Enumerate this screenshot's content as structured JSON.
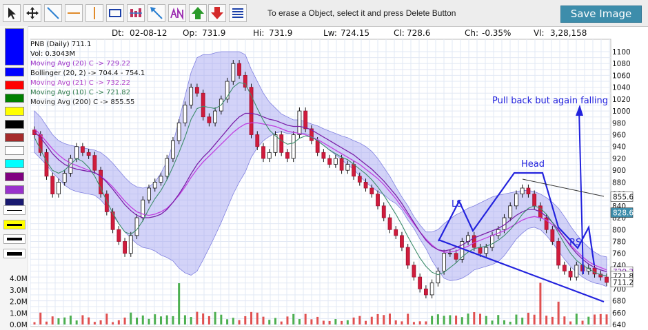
{
  "toolbar": {
    "tools": [
      {
        "name": "pointer-icon",
        "color": "#222222"
      },
      {
        "name": "move-icon",
        "color": "#222222"
      },
      {
        "name": "trendline-icon",
        "color": "#2a7fd0"
      },
      {
        "name": "horizontal-line-icon",
        "color": "#e08a2a"
      },
      {
        "name": "vertical-line-icon",
        "color": "#e08a2a"
      },
      {
        "name": "rectangle-icon",
        "color": "#1a3fa8"
      },
      {
        "name": "fibonacci-icon",
        "color": "#c0305a"
      },
      {
        "name": "arrow-line-icon",
        "color": "#2a7fd0"
      },
      {
        "name": "text-annotation-icon",
        "color": "#9a2ab0"
      },
      {
        "name": "up-arrow-icon",
        "color": "#2a9a2a"
      },
      {
        "name": "down-arrow-icon",
        "color": "#d42a2a"
      },
      {
        "name": "menu-icon",
        "color": "#1a3fa8"
      }
    ],
    "hint": "To erase a Object, select it and press Delete Button",
    "save_label": "Save Image",
    "save_color": "#3d8dab"
  },
  "palette": {
    "swatches": [
      "#0000ff",
      "#ff0000",
      "#008000",
      "#ffff00",
      "#000000",
      "#a52a2a",
      "#ffffff",
      "#00ffff",
      "#800080",
      "#9932cc",
      "#191970"
    ],
    "selected": "#0000ff",
    "lines": [
      "thin",
      "thick",
      "medium",
      "thickest"
    ]
  },
  "info": {
    "dt_label": "Dt:",
    "dt": "02-08-12",
    "op_label": "Op:",
    "op": "731.9",
    "hi_label": "Hi:",
    "hi": "731.9",
    "lw_label": "Lw:",
    "lw": "724.15",
    "cl_label": "Cl:",
    "cl": "728.6",
    "ch_label": "Ch:",
    "ch": "-0.35%",
    "vl_label": "Vl:",
    "vl": "3,28,158"
  },
  "legend": {
    "title": "PNB (Daily) 711.1",
    "vol": "Vol: 0.3043M",
    "ma20": "Moving Avg (20) C -> 729.22",
    "boll": "Bollinger (20, 2) -> 704.4 - 754.1",
    "ma21": "Moving Avg (21) C -> 732.22",
    "ma10": "Moving Avg (10) C -> 721.82",
    "ma200": "Moving Avg (200) C -> 855.55"
  },
  "annotations": {
    "pull_back": "Pull back but again falling",
    "head": "Head",
    "ls": "LS",
    "rs": "RS"
  },
  "badges": {
    "ma200": "855.6",
    "cursor": "828.6",
    "ma20": "729.2",
    "ma10": "721.8",
    "close": "711.2"
  },
  "chart_data": {
    "type": "candlestick",
    "symbol": "PNB",
    "ylim": [
      640,
      1100
    ],
    "ytick_labels": [
      "1100",
      "1080",
      "1060",
      "1040",
      "1020",
      "1000",
      "980",
      "960",
      "940",
      "920",
      "900",
      "880",
      "860",
      "840",
      "820",
      "800",
      "780",
      "760",
      "740",
      "720",
      "700",
      "680",
      "660",
      "640"
    ],
    "volume_ticks": [
      "4.0M",
      "3.0M",
      "2.0M",
      "1.0M",
      "0.0M"
    ],
    "volume_ylim": [
      0,
      4.0
    ],
    "closes": [
      960,
      930,
      890,
      860,
      880,
      895,
      920,
      940,
      930,
      925,
      900,
      860,
      830,
      800,
      780,
      760,
      790,
      820,
      850,
      870,
      880,
      890,
      920,
      950,
      980,
      1010,
      1040,
      1030,
      990,
      980,
      1000,
      1020,
      1050,
      1080,
      1060,
      1040,
      960,
      940,
      920,
      930,
      960,
      930,
      920,
      960,
      1000,
      970,
      950,
      930,
      920,
      910,
      920,
      900,
      910,
      890,
      880,
      870,
      860,
      840,
      820,
      800,
      790,
      770,
      740,
      720,
      700,
      690,
      710,
      730,
      760,
      760,
      750,
      780,
      790,
      770,
      760,
      770,
      790,
      800,
      820,
      840,
      860,
      870,
      860,
      840,
      820,
      800,
      780,
      740,
      730,
      720,
      740,
      730,
      735,
      725,
      720,
      711
    ],
    "ma20": [
      965,
      955,
      942,
      928,
      918,
      910,
      905,
      902,
      900,
      898,
      896,
      890,
      880,
      868,
      855,
      842,
      832,
      824,
      820,
      820,
      822,
      826,
      834,
      846,
      860,
      876,
      894,
      910,
      922,
      932,
      944,
      956,
      968,
      980,
      990,
      996,
      996,
      994,
      990,
      986,
      984,
      980,
      976,
      974,
      974,
      972,
      968,
      962,
      956,
      950,
      944,
      938,
      932,
      926,
      918,
      910,
      902,
      892,
      882,
      870,
      858,
      844,
      828,
      812,
      796,
      782,
      772,
      766,
      764,
      766,
      770,
      774,
      780,
      786,
      790,
      794,
      798,
      802,
      808,
      816,
      824,
      830,
      834,
      834,
      830,
      822,
      812,
      800,
      786,
      772,
      760,
      750,
      742,
      736,
      732,
      729
    ],
    "boll_upper": [
      1000,
      990,
      975,
      960,
      950,
      945,
      942,
      940,
      938,
      936,
      934,
      930,
      922,
      912,
      900,
      888,
      878,
      872,
      870,
      872,
      880,
      895,
      915,
      945,
      985,
      1025,
      1065,
      1090,
      1095,
      1095,
      1098,
      1100,
      1100,
      1100,
      1100,
      1095,
      1070,
      1050,
      1030,
      1015,
      1005,
      995,
      990,
      985,
      985,
      982,
      978,
      975,
      970,
      966,
      962,
      958,
      955,
      950,
      946,
      940,
      932,
      920,
      905,
      890,
      872,
      855,
      840,
      822,
      808,
      796,
      796,
      800,
      810,
      818,
      825,
      830,
      836,
      840,
      845,
      850,
      855,
      858,
      860,
      862,
      864,
      866,
      866,
      864,
      860,
      854,
      846,
      836,
      822,
      806,
      792,
      780,
      770,
      762,
      756,
      754
    ],
    "boll_lower": [
      930,
      920,
      909,
      896,
      886,
      875,
      868,
      864,
      862,
      860,
      858,
      850,
      838,
      824,
      810,
      796,
      786,
      776,
      770,
      768,
      764,
      757,
      753,
      747,
      735,
      727,
      723,
      730,
      749,
      769,
      790,
      812,
      836,
      860,
      880,
      897,
      922,
      938,
      950,
      957,
      963,
      965,
      962,
      963,
      963,
      962,
      958,
      949,
      942,
      934,
      926,
      918,
      909,
      902,
      890,
      880,
      872,
      864,
      859,
      850,
      844,
      833,
      816,
      802,
      784,
      768,
      748,
      732,
      718,
      714,
      715,
      718,
      724,
      732,
      735,
      738,
      741,
      746,
      756,
      770,
      784,
      794,
      802,
      804,
      800,
      790,
      778,
      764,
      750,
      738,
      728,
      720,
      714,
      710,
      708,
      704
    ],
    "ma10": [
      955,
      935,
      915,
      900,
      895,
      900,
      910,
      920,
      915,
      905,
      890,
      870,
      848,
      828,
      810,
      796,
      792,
      800,
      815,
      835,
      852,
      866,
      884,
      906,
      930,
      956,
      986,
      1004,
      1008,
      1006,
      1004,
      1010,
      1024,
      1040,
      1048,
      1046,
      1026,
      1004,
      984,
      968,
      958,
      950,
      944,
      946,
      954,
      958,
      956,
      950,
      942,
      934,
      928,
      922,
      918,
      910,
      902,
      894,
      884,
      872,
      858,
      842,
      826,
      808,
      788,
      770,
      752,
      738,
      728,
      724,
      728,
      736,
      744,
      754,
      762,
      768,
      770,
      772,
      776,
      782,
      790,
      800,
      812,
      826,
      836,
      840,
      836,
      826,
      812,
      794,
      776,
      760,
      748,
      740,
      734,
      728,
      724,
      722
    ],
    "ma21": [
      970,
      960,
      948,
      936,
      926,
      918,
      912,
      908,
      904,
      900,
      896,
      890,
      882,
      872,
      860,
      848,
      838,
      830,
      826,
      824,
      826,
      830,
      836,
      846,
      858,
      872,
      888,
      902,
      914,
      924,
      934,
      944,
      954,
      964,
      972,
      978,
      980,
      980,
      978,
      976,
      974,
      970,
      966,
      964,
      962,
      960,
      956,
      952,
      946,
      940,
      934,
      928,
      922,
      916,
      910,
      902,
      894,
      886,
      876,
      864,
      852,
      838,
      824,
      810,
      796,
      784,
      774,
      766,
      762,
      762,
      764,
      768,
      772,
      778,
      782,
      786,
      790,
      794,
      798,
      804,
      810,
      816,
      820,
      822,
      820,
      816,
      808,
      798,
      786,
      774,
      764,
      754,
      746,
      740,
      736,
      732
    ]
  }
}
